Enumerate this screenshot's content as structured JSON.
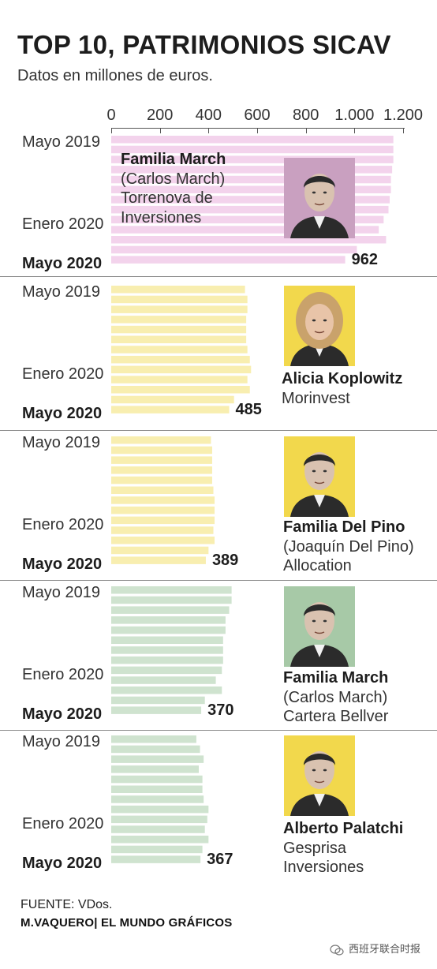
{
  "title": "TOP 10, PATRIMONIOS SICAV",
  "subtitle": "Datos en millones de euros.",
  "source": "FUENTE: VDos.",
  "credit": "M.VAQUERO| EL MUNDO GRÁFICOS",
  "watermark": "西班牙联合时报",
  "colors": {
    "pink": "#f3d3ec",
    "yellow": "#f8eeb0",
    "green": "#cfe3cf"
  },
  "chart_data": {
    "type": "bar",
    "orientation": "horizontal",
    "xlim": [
      0,
      1200
    ],
    "xticks": [
      0,
      200,
      400,
      600,
      800,
      1000,
      1200
    ],
    "xtick_labels": [
      "0",
      "200",
      "400",
      "600",
      "800",
      "1.000",
      "1.200"
    ],
    "periods": [
      "Mayo 2019",
      "Enero 2020",
      "Mayo 2020"
    ],
    "panels": [
      {
        "color": "pink",
        "owner_lines": [
          "Familia March",
          "(Carlos March)",
          "Torrenova de",
          "Inversiones"
        ],
        "photo": "man-portrait-icon",
        "values": [
          1160,
          1160,
          1160,
          1155,
          1150,
          1150,
          1145,
          1140,
          1120,
          1100,
          1130,
          1010,
          962
        ],
        "final_label": "962"
      },
      {
        "color": "yellow",
        "owner_lines": [
          "Alicia Koplowitz",
          "Morinvest"
        ],
        "photo": "woman-portrait-icon",
        "values": [
          550,
          560,
          560,
          555,
          555,
          555,
          560,
          570,
          575,
          560,
          570,
          505,
          485
        ],
        "final_label": "485"
      },
      {
        "color": "yellow",
        "owner_lines": [
          "Familia Del Pino",
          "(Joaquín Del Pino)",
          "Allocation"
        ],
        "photo": "man-portrait-icon",
        "values": [
          410,
          415,
          415,
          415,
          415,
          420,
          425,
          425,
          425,
          420,
          425,
          400,
          389
        ],
        "final_label": "389"
      },
      {
        "color": "green",
        "owner_lines": [
          "Familia March",
          "(Carlos March)",
          "Cartera Bellver"
        ],
        "photo": "man-portrait-icon",
        "values": [
          495,
          495,
          485,
          470,
          470,
          460,
          460,
          460,
          455,
          430,
          455,
          385,
          370
        ],
        "final_label": "370"
      },
      {
        "color": "green",
        "owner_lines": [
          "Alberto Palatchi",
          "Gesprisa",
          "Inversiones"
        ],
        "photo": "man-portrait-icon",
        "values": [
          350,
          365,
          380,
          360,
          375,
          375,
          380,
          400,
          395,
          385,
          400,
          375,
          367
        ],
        "final_label": "367"
      }
    ]
  }
}
